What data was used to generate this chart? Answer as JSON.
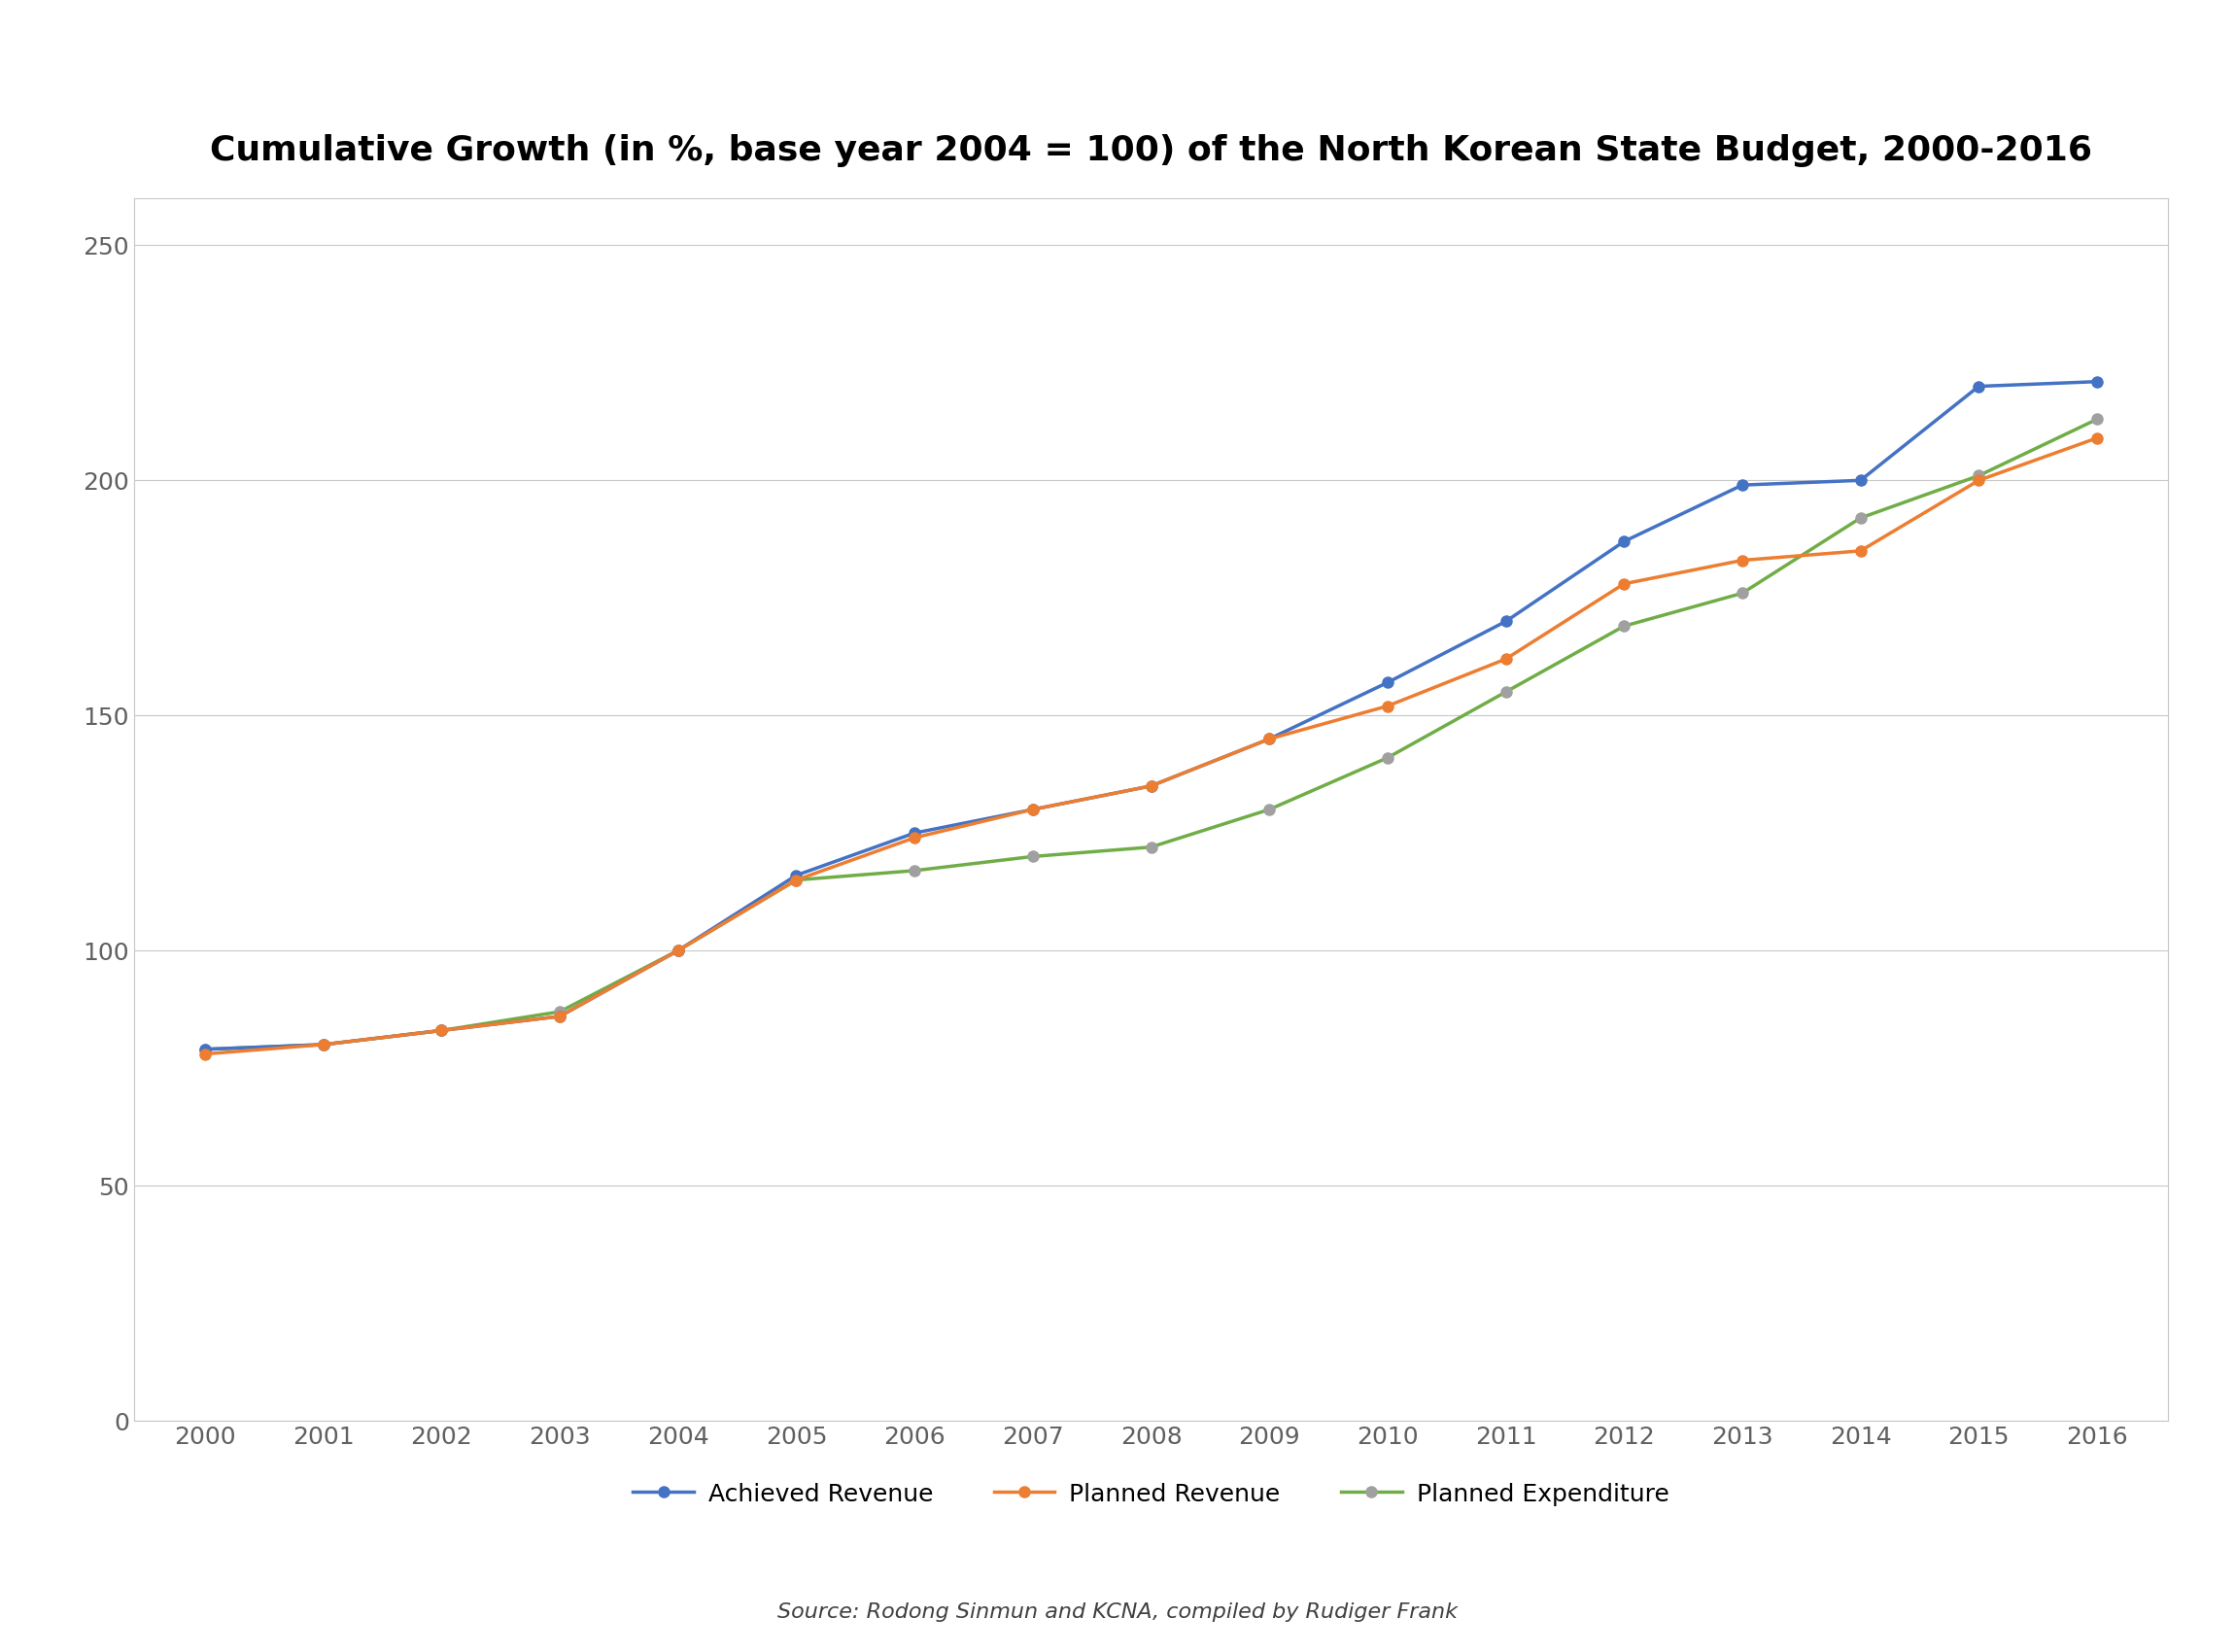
{
  "title": "Cumulative Growth (in %, base year 2004 = 100) of the North Korean State Budget, 2000-2016",
  "years": [
    2000,
    2001,
    2002,
    2003,
    2004,
    2005,
    2006,
    2007,
    2008,
    2009,
    2010,
    2011,
    2012,
    2013,
    2014,
    2015,
    2016
  ],
  "achieved_revenue": [
    79,
    80,
    83,
    86,
    100,
    116,
    125,
    130,
    135,
    145,
    157,
    170,
    187,
    199,
    200,
    220,
    221
  ],
  "planned_revenue": [
    78,
    80,
    83,
    86,
    100,
    115,
    124,
    130,
    135,
    145,
    152,
    162,
    178,
    183,
    185,
    200,
    209
  ],
  "planned_expenditure": [
    79,
    80,
    83,
    87,
    100,
    115,
    117,
    120,
    122,
    130,
    141,
    155,
    169,
    176,
    192,
    201,
    213
  ],
  "achieved_revenue_color": "#4472c4",
  "planned_revenue_color": "#ed7d31",
  "planned_expenditure_color": "#70ad47",
  "marker_color_planned_exp": "#a0a0a0",
  "ylim": [
    0,
    260
  ],
  "yticks": [
    0,
    50,
    100,
    150,
    200,
    250
  ],
  "legend_labels": [
    "Achieved Revenue",
    "Planned Revenue",
    "Planned Expenditure"
  ],
  "source_text": "Source: Rodong Sinmun and KCNA, compiled by Rudiger Frank",
  "title_fontsize": 26,
  "axis_fontsize": 18,
  "legend_fontsize": 18,
  "source_fontsize": 16,
  "line_width": 2.5,
  "marker_size": 8,
  "background_color": "#ffffff",
  "plot_bg_color": "#ffffff",
  "grid_color": "#c8c8c8",
  "spine_color": "#c8c8c8",
  "tick_color": "#606060"
}
